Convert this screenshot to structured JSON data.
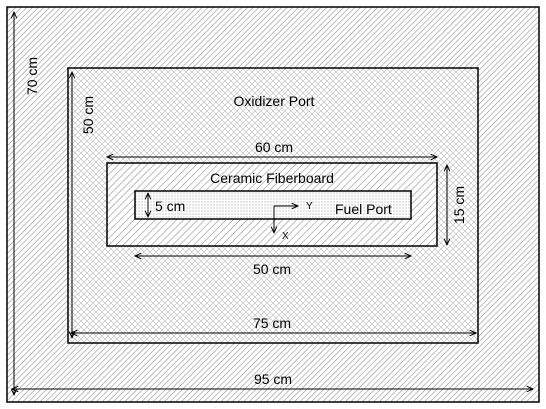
{
  "labels": {
    "oxidizer_port": "Oxidizer Port",
    "ceramic_fiberboard": "Ceramic Fiberboard",
    "fuel_port": "Fuel Port",
    "axis_y": "Y",
    "axis_x": "X"
  },
  "dimensions": {
    "outer_width": "95 cm",
    "outer_height": "70 cm",
    "oxidizer_width": "75 cm",
    "oxidizer_height": "50 cm",
    "ceramic_width": "60 cm",
    "ceramic_height": "15 cm",
    "fuel_width": "50 cm",
    "fuel_height": "5 cm"
  }
}
